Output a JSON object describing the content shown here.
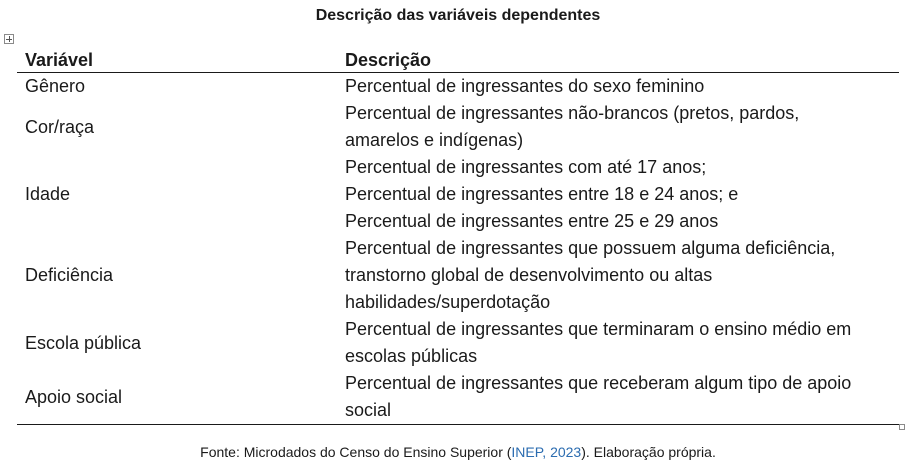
{
  "caption": "Descrição das variáveis dependentes",
  "table": {
    "headers": [
      "Variável",
      "Descrição"
    ],
    "rows": [
      {
        "variable": "Gênero",
        "description_lines": [
          "Percentual de ingressantes do sexo feminino"
        ]
      },
      {
        "variable": "Cor/raça",
        "description_lines": [
          "Percentual de ingressantes não-brancos (pretos, pardos,",
          "amarelos e indígenas)"
        ]
      },
      {
        "variable": "Idade",
        "description_lines": [
          "Percentual de ingressantes com até 17 anos;",
          "Percentual de ingressantes entre 18 e 24 anos; e",
          "Percentual de ingressantes entre 25 e 29 anos"
        ]
      },
      {
        "variable": "Deficiência",
        "description_lines": [
          "Percentual de ingressantes que possuem alguma deficiência,",
          "transtorno global de desenvolvimento ou altas",
          "habilidades/superdotação"
        ]
      },
      {
        "variable": "Escola pública",
        "description_lines": [
          "Percentual de ingressantes que terminaram o ensino médio em",
          "escolas públicas"
        ]
      },
      {
        "variable": "Apoio social",
        "description_lines": [
          "Percentual de ingressantes que receberam algum tipo de apoio",
          "social"
        ]
      }
    ]
  },
  "source": {
    "prefix": "Fonte: Microdados do Censo do Ensino Superior (",
    "reference": "INEP, 2023",
    "suffix": "). Elaboração própria."
  },
  "icons": {
    "table_handle": "table-move-handle-icon",
    "resize_handle": "table-resize-handle-icon"
  }
}
